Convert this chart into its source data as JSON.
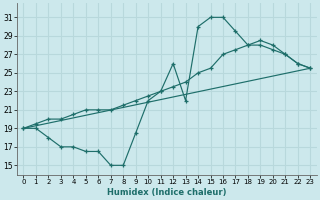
{
  "xlabel": "Humidex (Indice chaleur)",
  "bg_color": "#cce8ec",
  "grid_color": "#b8d8dc",
  "line_color": "#1e6e6a",
  "xlim": [
    -0.5,
    23.5
  ],
  "ylim": [
    14,
    32.5
  ],
  "xticks": [
    0,
    1,
    2,
    3,
    4,
    5,
    6,
    7,
    8,
    9,
    10,
    11,
    12,
    13,
    14,
    15,
    16,
    17,
    18,
    19,
    20,
    21,
    22,
    23
  ],
  "yticks": [
    15,
    17,
    19,
    21,
    23,
    25,
    27,
    29,
    31
  ],
  "line_zigzag": {
    "x": [
      0,
      1,
      2,
      3,
      4,
      5,
      6,
      7,
      8,
      9,
      10,
      11,
      12,
      13,
      14,
      15,
      16,
      17,
      18,
      19,
      20,
      21,
      22,
      23
    ],
    "y": [
      19,
      19,
      18,
      17,
      17,
      16.5,
      16.5,
      15,
      15,
      18.5,
      22,
      23,
      26,
      22,
      30,
      31,
      31,
      29.5,
      28,
      28,
      27.5,
      27,
      26,
      25.5
    ]
  },
  "line_upper": {
    "x": [
      0,
      1,
      2,
      3,
      4,
      5,
      6,
      7,
      8,
      9,
      10,
      11,
      12,
      13,
      14,
      15,
      16,
      17,
      18,
      19,
      20,
      21,
      22,
      23
    ],
    "y": [
      19,
      19.5,
      20,
      20,
      20.5,
      21,
      21,
      21,
      21.5,
      22,
      22.5,
      23,
      23.5,
      24,
      25,
      25.5,
      27,
      27.5,
      28,
      28.5,
      28,
      27,
      26,
      25.5
    ]
  },
  "line_straight": {
    "x": [
      0,
      23
    ],
    "y": [
      19,
      25.5
    ]
  }
}
